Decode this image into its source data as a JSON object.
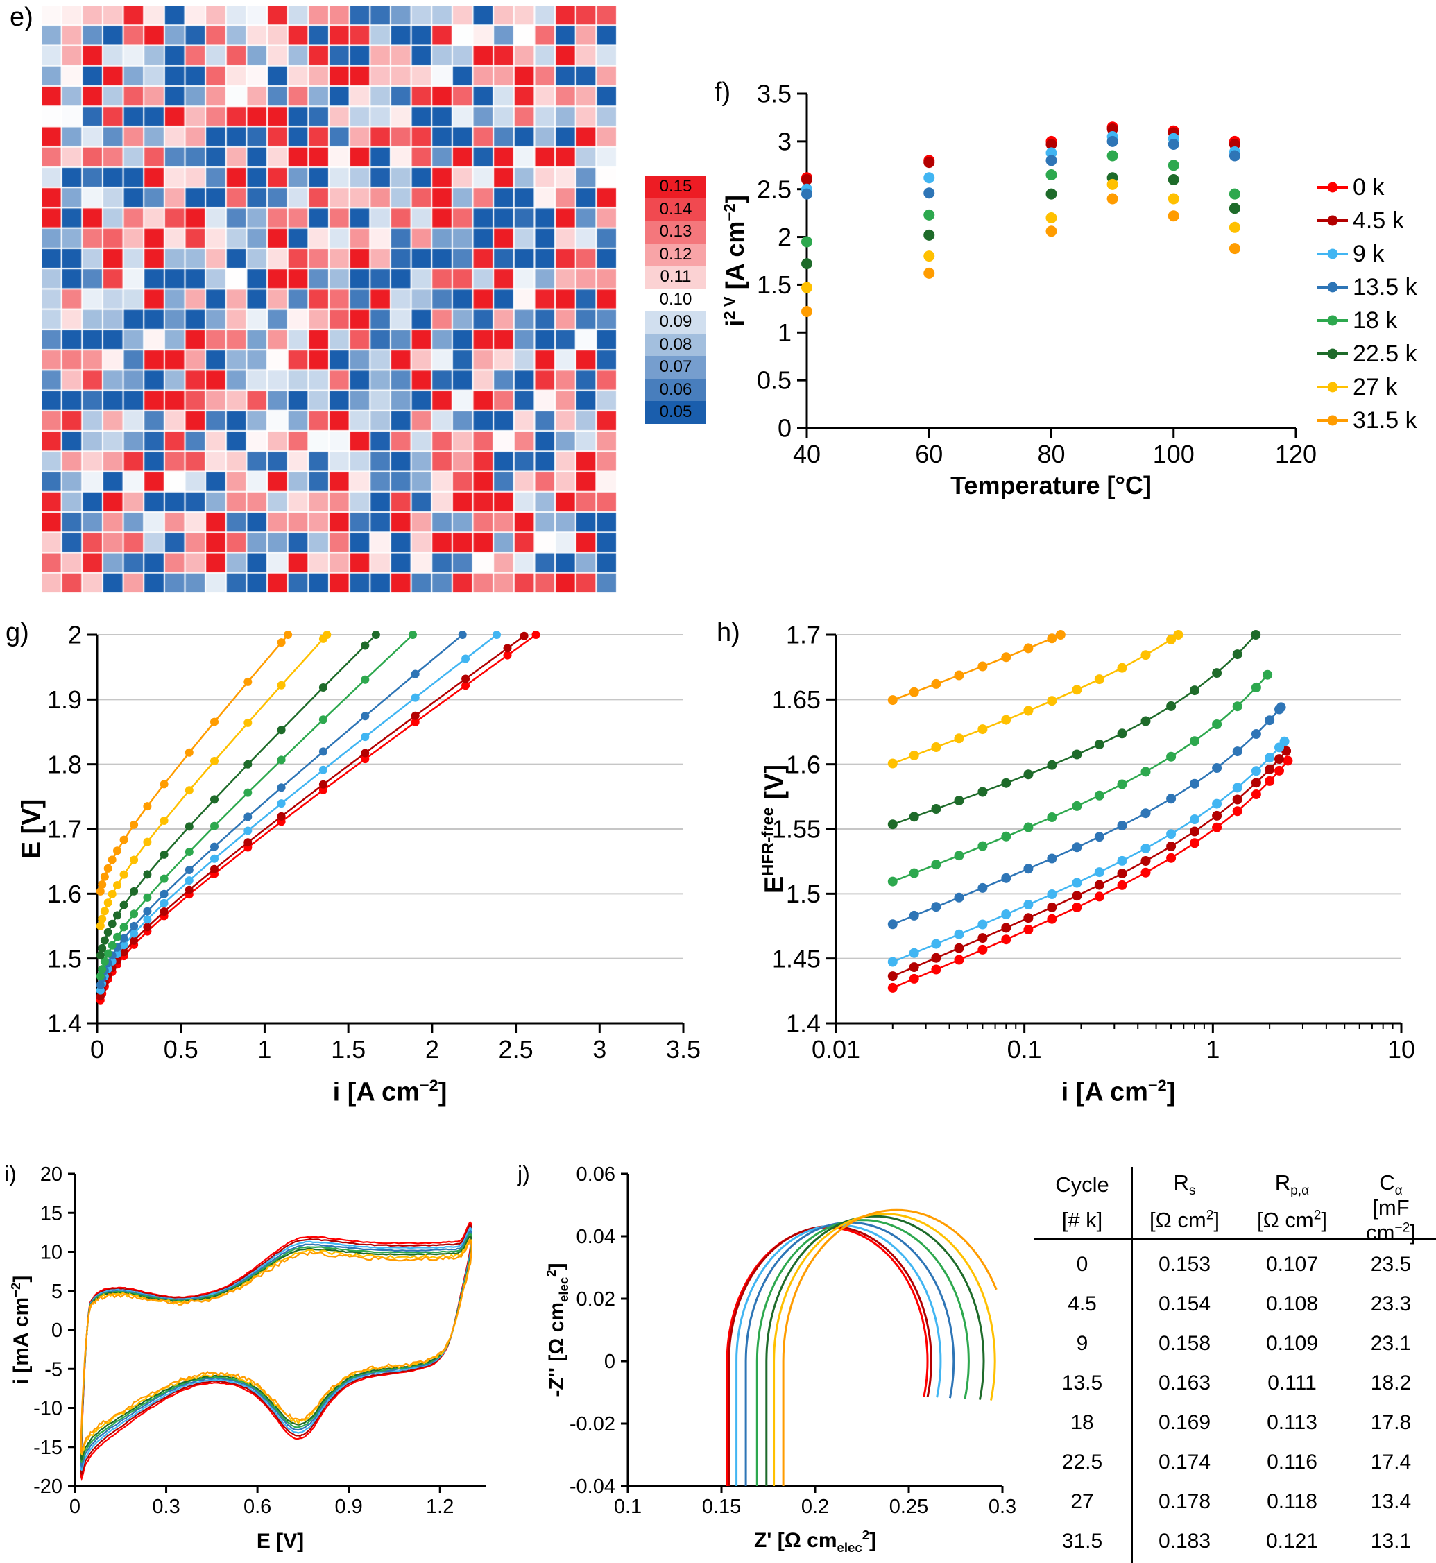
{
  "cycles": [
    {
      "name": "0 k",
      "color": "#FF0000"
    },
    {
      "name": "4.5 k",
      "color": "#B30000"
    },
    {
      "name": "9 k",
      "color": "#41B5F2"
    },
    {
      "name": "13.5 k",
      "color": "#2E75B6"
    },
    {
      "name": "18 k",
      "color": "#2DA84E"
    },
    {
      "name": "22.5 k",
      "color": "#1E6B2A"
    },
    {
      "name": "27 k",
      "color": "#FFC000"
    },
    {
      "name": "31.5 k",
      "color": "#FF9C00"
    }
  ],
  "chart_data": [
    {
      "id": "e",
      "panel_label": "e)",
      "type": "heatmap",
      "rows": 29,
      "cols": 28,
      "vmin": 0.05,
      "vmax": 0.15,
      "mid": 0.1,
      "seed": 11,
      "color_low": "#1A5EAD",
      "color_mid": "#FFFFFF",
      "color_high": "#ED1C24",
      "colorbar_ticks": [
        0.15,
        0.14,
        0.13,
        0.12,
        0.11,
        0.1,
        0.09,
        0.08,
        0.07,
        0.06,
        0.05
      ]
    },
    {
      "id": "f",
      "panel_label": "f)",
      "type": "scatter",
      "xlabel": [
        "Temperature [°C]"
      ],
      "ylabel": [
        "i",
        {
          "sup": "2 V"
        },
        " [A cm",
        {
          "sup": "−2"
        },
        "]"
      ],
      "xlim": [
        40,
        120
      ],
      "ylim": [
        0,
        3.5
      ],
      "xticks": [
        [
          40,
          "40"
        ],
        [
          60,
          "60"
        ],
        [
          80,
          "80"
        ],
        [
          100,
          "100"
        ],
        [
          120,
          "120"
        ]
      ],
      "yticks": [
        [
          0,
          "0"
        ],
        [
          0.5,
          "0.5"
        ],
        [
          1,
          "1"
        ],
        [
          1.5,
          "1.5"
        ],
        [
          2,
          "2"
        ],
        [
          2.5,
          "2.5"
        ],
        [
          3,
          "3"
        ],
        [
          3.5,
          "3.5"
        ]
      ],
      "temperatures": [
        40,
        60,
        80,
        90,
        100,
        110
      ],
      "series": [
        {
          "cycle": "0 k",
          "values": [
            2.62,
            2.8,
            3.0,
            3.15,
            3.11,
            3.0
          ]
        },
        {
          "cycle": "4.5 k",
          "values": [
            2.6,
            2.78,
            2.97,
            3.13,
            3.09,
            2.97
          ]
        },
        {
          "cycle": "9 k",
          "values": [
            2.5,
            2.62,
            2.88,
            3.05,
            3.03,
            2.89
          ]
        },
        {
          "cycle": "13.5 k",
          "values": [
            2.45,
            2.46,
            2.8,
            3.0,
            2.97,
            2.85
          ]
        },
        {
          "cycle": "18 k",
          "values": [
            1.95,
            2.23,
            2.65,
            2.85,
            2.75,
            2.45
          ]
        },
        {
          "cycle": "22.5 k",
          "values": [
            1.72,
            2.02,
            2.45,
            2.62,
            2.6,
            2.3
          ]
        },
        {
          "cycle": "27 k",
          "values": [
            1.47,
            1.8,
            2.2,
            2.55,
            2.4,
            2.1
          ]
        },
        {
          "cycle": "31.5 k",
          "values": [
            1.22,
            1.62,
            2.06,
            2.4,
            2.22,
            1.88
          ]
        }
      ],
      "legend": [
        "0 k",
        "4.5 k",
        "9 k",
        "13.5 k",
        "18 k",
        "22.5 k",
        "27 k",
        "31.5 k"
      ]
    },
    {
      "id": "g",
      "panel_label": "g)",
      "type": "polarization",
      "xlabel": [
        "i [A cm",
        {
          "sup": "−2"
        },
        "]"
      ],
      "ylabel": [
        "E [V]"
      ],
      "xlim": [
        0,
        3.5
      ],
      "ylim": [
        1.4,
        2.0
      ],
      "xticks": [
        [
          0,
          "0"
        ],
        [
          0.5,
          "0.5"
        ],
        [
          1,
          "1"
        ],
        [
          1.5,
          "1.5"
        ],
        [
          2,
          "2"
        ],
        [
          2.5,
          "2.5"
        ],
        [
          3,
          "3"
        ],
        [
          3.5,
          "3.5"
        ]
      ],
      "yticks": [
        [
          1.4,
          "1.4"
        ],
        [
          1.5,
          "1.5"
        ],
        [
          1.6,
          "1.6"
        ],
        [
          1.7,
          "1.7"
        ],
        [
          1.8,
          "1.8"
        ],
        [
          1.9,
          "1.9"
        ],
        [
          2,
          "2"
        ]
      ],
      "i_grid": [
        0.02,
        0.03,
        0.045,
        0.065,
        0.09,
        0.12,
        0.16,
        0.22,
        0.3,
        0.4,
        0.55,
        0.7,
        0.9,
        1.1,
        1.35,
        1.6,
        1.9,
        2.2,
        2.45,
        2.62
      ],
      "E_max": 2.0,
      "i_ref": 0.02,
      "series": [
        {
          "cycle": "0 k",
          "E0": 1.432,
          "tafel": 0.048,
          "R": 0.178,
          "i_max": 2.62
        },
        {
          "cycle": "4.5 k",
          "E0": 1.438,
          "tafel": 0.048,
          "R": 0.18,
          "i_max": 2.55
        },
        {
          "cycle": "9 k",
          "E0": 1.447,
          "tafel": 0.048,
          "R": 0.19,
          "i_max": 2.42
        },
        {
          "cycle": "13.5 k",
          "E0": 1.455,
          "tafel": 0.048,
          "R": 0.205,
          "i_max": 2.25
        },
        {
          "cycle": "18 k",
          "E0": 1.468,
          "tafel": 0.048,
          "R": 0.232,
          "i_max": 1.97
        },
        {
          "cycle": "22.5 k",
          "E0": 1.5,
          "tafel": 0.048,
          "R": 0.245,
          "i_max": 1.72
        },
        {
          "cycle": "27 k",
          "E0": 1.545,
          "tafel": 0.046,
          "R": 0.27,
          "i_max": 1.45
        },
        {
          "cycle": "31.5 k",
          "E0": 1.598,
          "tafel": 0.044,
          "R": 0.285,
          "i_max": 1.21
        }
      ]
    },
    {
      "id": "h",
      "panel_label": "h)",
      "type": "hfr_free",
      "logx": true,
      "xlabel": [
        "i [A cm",
        {
          "sup": "−2"
        },
        "]"
      ],
      "ylabel": [
        "E",
        {
          "sup": "HFR-free"
        },
        " [V]"
      ],
      "xlim": [
        0.01,
        10
      ],
      "ylim": [
        1.4,
        1.7
      ],
      "xticks": [
        [
          0.01,
          "0.01"
        ],
        [
          0.1,
          "0.1"
        ],
        [
          1,
          "1"
        ],
        [
          10,
          "10"
        ]
      ],
      "yticks": [
        [
          1.4,
          "1.4"
        ],
        [
          1.45,
          "1.45"
        ],
        [
          1.5,
          "1.5"
        ],
        [
          1.55,
          "1.55"
        ],
        [
          1.6,
          "1.6"
        ],
        [
          1.65,
          "1.65"
        ],
        [
          1.7,
          "1.7"
        ]
      ],
      "i_grid": [
        0.02,
        0.026,
        0.034,
        0.045,
        0.06,
        0.08,
        0.105,
        0.14,
        0.19,
        0.25,
        0.33,
        0.44,
        0.6,
        0.8,
        1.05,
        1.35,
        1.7,
        2.0,
        2.25,
        2.5
      ],
      "E_max": 1.7,
      "i_ref": 0.02,
      "series": [
        {
          "cycle": "0 k",
          "E0": 1.427,
          "tafel": 0.06,
          "R": 0.02,
          "i_max": 2.5
        },
        {
          "cycle": "4.5 k",
          "E0": 1.436,
          "tafel": 0.06,
          "R": 0.02,
          "i_max": 2.45
        },
        {
          "cycle": "9 k",
          "E0": 1.447,
          "tafel": 0.059,
          "R": 0.02,
          "i_max": 2.4
        },
        {
          "cycle": "13.5 k",
          "E0": 1.476,
          "tafel": 0.057,
          "R": 0.022,
          "i_max": 2.3
        },
        {
          "cycle": "18 k",
          "E0": 1.509,
          "tafel": 0.055,
          "R": 0.026,
          "i_max": 1.95
        },
        {
          "cycle": "22.5 k",
          "E0": 1.553,
          "tafel": 0.05,
          "R": 0.03,
          "i_max": 1.7
        },
        {
          "cycle": "27 k",
          "E0": 1.6,
          "tafel": 0.053,
          "R": 0.03,
          "i_max": 0.7
        },
        {
          "cycle": "31.5 k",
          "E0": 1.649,
          "tafel": 0.052,
          "R": 0.03,
          "i_max": 0.17
        }
      ]
    },
    {
      "id": "i",
      "panel_label": "i)",
      "type": "cv",
      "xlabel": [
        "E [V]"
      ],
      "ylabel": [
        "i [mA cm",
        {
          "sup": "−2"
        },
        "]"
      ],
      "xlim": [
        0,
        1.35
      ],
      "ylim": [
        -20,
        20
      ],
      "xticks": [
        [
          0,
          "0"
        ],
        [
          0.3,
          "0.3"
        ],
        [
          0.6,
          "0.6"
        ],
        [
          0.9,
          "0.9"
        ],
        [
          1.2,
          "1.2"
        ]
      ],
      "yticks": [
        [
          -20,
          "-20"
        ],
        [
          -15,
          "-15"
        ],
        [
          -10,
          "-10"
        ],
        [
          -5,
          "-5"
        ],
        [
          0,
          "0"
        ],
        [
          5,
          "5"
        ],
        [
          10,
          "10"
        ],
        [
          15,
          "15"
        ],
        [
          20,
          "20"
        ]
      ],
      "loop": [
        [
          0.02,
          -17
        ],
        [
          0.03,
          -6
        ],
        [
          0.045,
          2
        ],
        [
          0.06,
          3.8
        ],
        [
          0.09,
          4.7
        ],
        [
          0.13,
          5.0
        ],
        [
          0.18,
          4.9
        ],
        [
          0.24,
          4.4
        ],
        [
          0.3,
          4.0
        ],
        [
          0.36,
          3.9
        ],
        [
          0.44,
          4.4
        ],
        [
          0.52,
          5.6
        ],
        [
          0.6,
          7.6
        ],
        [
          0.68,
          9.8
        ],
        [
          0.74,
          10.9
        ],
        [
          0.8,
          11.0
        ],
        [
          0.88,
          10.7
        ],
        [
          0.96,
          10.4
        ],
        [
          1.05,
          10.3
        ],
        [
          1.14,
          10.3
        ],
        [
          1.22,
          10.4
        ],
        [
          1.27,
          10.7
        ],
        [
          1.3,
          12.8
        ],
        [
          1.3,
          9.8
        ],
        [
          1.27,
          4.5
        ],
        [
          1.23,
          -1.5
        ],
        [
          1.18,
          -4.0
        ],
        [
          1.1,
          -4.9
        ],
        [
          1.02,
          -5.3
        ],
        [
          0.95,
          -5.8
        ],
        [
          0.89,
          -6.8
        ],
        [
          0.83,
          -9.0
        ],
        [
          0.78,
          -11.8
        ],
        [
          0.74,
          -12.9
        ],
        [
          0.7,
          -12.3
        ],
        [
          0.65,
          -10.0
        ],
        [
          0.6,
          -8.0
        ],
        [
          0.55,
          -6.9
        ],
        [
          0.5,
          -6.4
        ],
        [
          0.45,
          -6.3
        ],
        [
          0.4,
          -6.6
        ],
        [
          0.34,
          -7.4
        ],
        [
          0.28,
          -8.6
        ],
        [
          0.22,
          -10.0
        ],
        [
          0.16,
          -11.6
        ],
        [
          0.1,
          -13.2
        ],
        [
          0.06,
          -14.6
        ],
        [
          0.035,
          -16.0
        ]
      ],
      "series": [
        {
          "cycle": "0 k",
          "scale": 1.08,
          "noise": 0.12
        },
        {
          "cycle": "4.5 k",
          "scale": 1.05,
          "noise": 0.12
        },
        {
          "cycle": "9 k",
          "scale": 1.02,
          "noise": 0.12
        },
        {
          "cycle": "13.5 k",
          "scale": 0.99,
          "noise": 0.12
        },
        {
          "cycle": "18 k",
          "scale": 0.965,
          "noise": 0.12
        },
        {
          "cycle": "22.5 k",
          "scale": 0.94,
          "noise": 0.12
        },
        {
          "cycle": "27 k",
          "scale": 0.91,
          "noise": 0.45
        },
        {
          "cycle": "31.5 k",
          "scale": 0.885,
          "noise": 0.5
        }
      ]
    },
    {
      "id": "j",
      "panel_label": "j)",
      "type": "nyquist",
      "xlabel": [
        "Z' [Ω cm",
        {
          "sub": "elec"
        },
        {
          "sup": "2"
        },
        "]"
      ],
      "ylabel": [
        "-Z'' [Ω cm",
        {
          "sub": "elec"
        },
        {
          "sup": "2"
        },
        "]"
      ],
      "xlim": [
        0.1,
        0.3
      ],
      "ylim": [
        -0.04,
        0.06
      ],
      "xticks": [
        [
          0.1,
          "0.1"
        ],
        [
          0.15,
          "0.15"
        ],
        [
          0.2,
          "0.2"
        ],
        [
          0.25,
          "0.25"
        ],
        [
          0.3,
          "0.3"
        ]
      ],
      "yticks": [
        [
          -0.04,
          "-0.04"
        ],
        [
          -0.02,
          "-0.02"
        ],
        [
          0,
          "0"
        ],
        [
          0.02,
          "0.02"
        ],
        [
          0.04,
          "0.04"
        ],
        [
          0.06,
          "0.06"
        ]
      ],
      "depression": 0.8,
      "series": [
        {
          "cycle": "0 k",
          "Rs": 0.153,
          "Rp": 0.107
        },
        {
          "cycle": "4.5 k",
          "Rs": 0.154,
          "Rp": 0.108
        },
        {
          "cycle": "9 k",
          "Rs": 0.158,
          "Rp": 0.109
        },
        {
          "cycle": "13.5 k",
          "Rs": 0.163,
          "Rp": 0.111
        },
        {
          "cycle": "18 k",
          "Rs": 0.169,
          "Rp": 0.113
        },
        {
          "cycle": "22.5 k",
          "Rs": 0.174,
          "Rp": 0.116
        },
        {
          "cycle": "27 k",
          "Rs": 0.178,
          "Rp": 0.118
        },
        {
          "cycle": "31.5 k",
          "Rs": 0.183,
          "Rp": 0.121
        }
      ]
    },
    {
      "id": "table",
      "type": "table",
      "headers": [
        [
          "Cycle"
        ],
        [
          "R",
          {
            "sub": "s"
          }
        ],
        [
          "R",
          {
            "sub": "p,α"
          }
        ],
        [
          "C",
          {
            "sub": "α"
          }
        ]
      ],
      "units": [
        [
          "[# k]"
        ],
        [
          "[Ω cm",
          {
            "sup": "2"
          },
          "]"
        ],
        [
          "[Ω cm",
          {
            "sup": "2"
          },
          "]"
        ],
        [
          "[mF cm",
          {
            "sup": "−2"
          },
          "]"
        ]
      ],
      "rows": [
        [
          "0",
          "0.153",
          "0.107",
          "23.5"
        ],
        [
          "4.5",
          "0.154",
          "0.108",
          "23.3"
        ],
        [
          "9",
          "0.158",
          "0.109",
          "23.1"
        ],
        [
          "13.5",
          "0.163",
          "0.111",
          "18.2"
        ],
        [
          "18",
          "0.169",
          "0.113",
          "17.8"
        ],
        [
          "22.5",
          "0.174",
          "0.116",
          "17.4"
        ],
        [
          "27",
          "0.178",
          "0.118",
          "13.4"
        ],
        [
          "31.5",
          "0.183",
          "0.121",
          "13.1"
        ]
      ]
    }
  ]
}
